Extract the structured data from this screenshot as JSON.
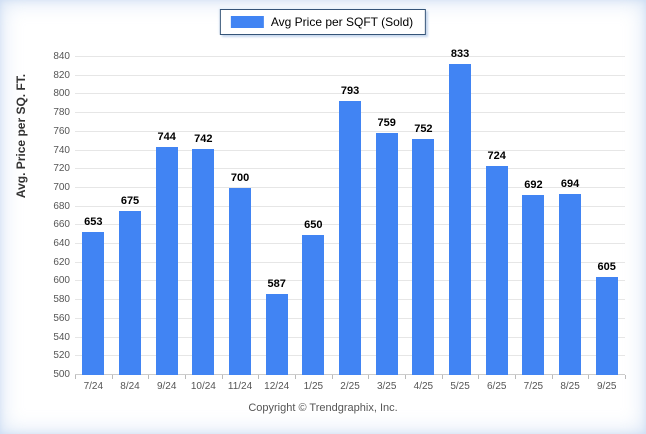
{
  "legend": {
    "label": "Avg Price per SQFT (Sold)",
    "swatch_color": "#4184F3"
  },
  "footer": {
    "copyright": "Copyright © Trendgraphix, Inc."
  },
  "chart_data": {
    "type": "bar",
    "title": "",
    "xlabel": "",
    "ylabel": "Avg. Price per SQ. FT.",
    "categories": [
      "7/24",
      "8/24",
      "9/24",
      "10/24",
      "11/24",
      "12/24",
      "1/25",
      "2/25",
      "3/25",
      "4/25",
      "5/25",
      "6/25",
      "7/25",
      "8/25",
      "9/25"
    ],
    "values": [
      653,
      675,
      744,
      742,
      700,
      587,
      650,
      793,
      759,
      752,
      833,
      724,
      692,
      694,
      605
    ],
    "series_name": "Avg Price per SQFT (Sold)",
    "ylim": [
      500,
      840
    ],
    "ytick_step": 20,
    "bar_color": "#4184F3",
    "grid": true,
    "legend_position": "top-center"
  }
}
